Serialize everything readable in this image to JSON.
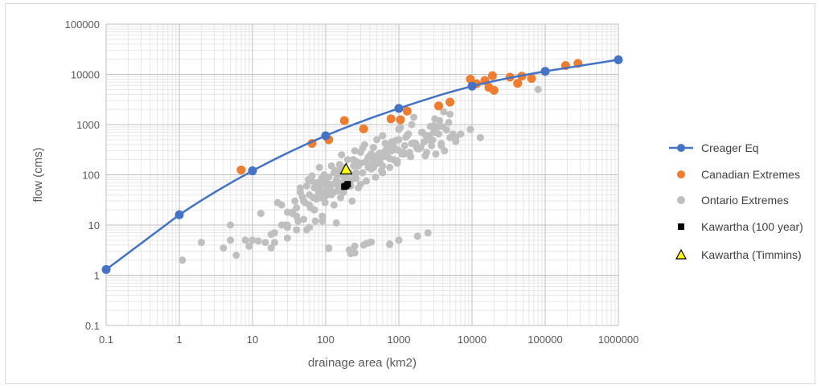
{
  "chart_data": {
    "type": "scatter",
    "title": "",
    "xlabel": "drainage area (km2)",
    "ylabel": "flow (cms)",
    "x_scale": "log",
    "y_scale": "log",
    "xlim": [
      0.1,
      1000000
    ],
    "ylim": [
      0.1,
      100000
    ],
    "grid": true,
    "legend_position": "right",
    "x_tick_labels": [
      "0.1",
      "1",
      "10",
      "100",
      "1000",
      "10000",
      "100000",
      "1000000"
    ],
    "y_tick_labels": [
      "0.1",
      "1",
      "10",
      "100",
      "1000",
      "10000",
      "100000"
    ],
    "series": [
      {
        "name": "Creager Eq",
        "kind": "line-markers",
        "color": "#4472c4",
        "marker": "circle",
        "x": [
          0.1,
          1,
          10,
          100,
          1000,
          10000,
          100000,
          1000000
        ],
        "y": [
          1.3,
          16,
          120,
          600,
          2100,
          5800,
          11500,
          19500
        ]
      },
      {
        "name": "Canadian Extremes",
        "kind": "markers",
        "color": "#ed7d31",
        "marker": "circle",
        "x": [
          7,
          65,
          110,
          180,
          330,
          780,
          1050,
          1300,
          3500,
          5000,
          9500,
          11500,
          15000,
          17000,
          19000,
          20000,
          33000,
          42000,
          48000,
          65000,
          190000,
          280000
        ],
        "y": [
          125,
          420,
          500,
          1200,
          820,
          1300,
          1250,
          1850,
          2350,
          2800,
          8000,
          6500,
          7500,
          5500,
          9400,
          4800,
          8800,
          6600,
          9200,
          8300,
          15000,
          16500
        ]
      },
      {
        "name": "Ontario Extremes",
        "kind": "markers",
        "color": "#bfbfbf",
        "marker": "circle",
        "x": [
          1.1,
          2,
          4,
          5,
          5,
          8,
          10,
          13,
          18,
          20,
          22,
          25,
          28,
          30,
          30,
          35,
          38,
          40,
          42,
          45,
          48,
          50,
          52,
          55,
          58,
          60,
          62,
          65,
          68,
          70,
          72,
          75,
          78,
          80,
          82,
          85,
          88,
          90,
          92,
          95,
          98,
          100,
          105,
          110,
          115,
          120,
          125,
          130,
          135,
          140,
          145,
          150,
          155,
          160,
          165,
          170,
          175,
          180,
          190,
          200,
          210,
          220,
          230,
          240,
          250,
          260,
          270,
          280,
          300,
          320,
          340,
          360,
          380,
          400,
          420,
          450,
          480,
          500,
          520,
          550,
          580,
          600,
          650,
          700,
          750,
          800,
          850,
          900,
          950,
          1000,
          1100,
          1200,
          1300,
          1400,
          1500,
          1700,
          1900,
          2100,
          2300,
          2500,
          2800,
          3000,
          3200,
          3500,
          3800,
          4200,
          4500,
          5000,
          5500,
          6000,
          7000,
          9500,
          13000,
          80000,
          30,
          40,
          55,
          70,
          90,
          120,
          150,
          200,
          250,
          300,
          400,
          500,
          600,
          800,
          1000,
          1500,
          2000,
          3000,
          4000,
          5000,
          60,
          75,
          100,
          130,
          170,
          220,
          280,
          350,
          450,
          550,
          700,
          900,
          1200,
          1600,
          2200,
          2600,
          3400,
          4800,
          6000,
          45,
          65,
          85,
          110,
          140,
          180,
          240,
          320,
          420,
          520,
          650,
          850,
          1050,
          1350,
          1800,
          2400,
          3100,
          4100,
          25,
          35,
          50,
          80,
          160,
          260,
          380,
          480,
          620,
          780,
          980,
          1250,
          1650,
          2050,
          2700,
          3600,
          70,
          100,
          130,
          200,
          300,
          450,
          600,
          750,
          950,
          1150,
          1450,
          1750,
          2300,
          2900,
          3800,
          15,
          18,
          12,
          9,
          6,
          110,
          210,
          250,
          330,
          400,
          750,
          1000,
          1800,
          2500,
          20,
          30,
          40,
          60,
          90,
          140
        ],
        "y": [
          2,
          4.5,
          3.5,
          10,
          5,
          5,
          5,
          17,
          3.5,
          7,
          28,
          10,
          10,
          18,
          9,
          17,
          30,
          22,
          12,
          45,
          36,
          13,
          28,
          60,
          80,
          40,
          22,
          95,
          35,
          55,
          12,
          33,
          70,
          40,
          140,
          60,
          85,
          35,
          45,
          100,
          28,
          70,
          55,
          90,
          50,
          150,
          65,
          25,
          120,
          80,
          48,
          100,
          160,
          35,
          250,
          70,
          45,
          140,
          90,
          200,
          110,
          60,
          30,
          150,
          300,
          85,
          180,
          55,
          280,
          110,
          400,
          75,
          220,
          160,
          130,
          350,
          90,
          500,
          250,
          180,
          120,
          600,
          300,
          230,
          140,
          450,
          200,
          320,
          170,
          800,
          260,
          380,
          600,
          280,
          1000,
          420,
          330,
          700,
          240,
          500,
          380,
          950,
          260,
          650,
          420,
          300,
          780,
          550,
          650,
          460,
          650,
          800,
          550,
          5000,
          10,
          15,
          8,
          20,
          15,
          40,
          60,
          85,
          95,
          170,
          240,
          210,
          150,
          300,
          500,
          420,
          350,
          700,
          900,
          1600,
          25,
          60,
          40,
          110,
          130,
          75,
          150,
          180,
          210,
          270,
          320,
          480,
          260,
          1400,
          450,
          600,
          900,
          1100,
          550,
          55,
          75,
          35,
          65,
          120,
          90,
          200,
          340,
          260,
          190,
          420,
          360,
          880,
          650,
          330,
          280,
          1300,
          1800,
          25,
          18,
          30,
          48,
          60,
          110,
          140,
          160,
          230,
          360,
          310,
          560,
          430,
          700,
          920,
          1200,
          20,
          38,
          45,
          80,
          65,
          140,
          110,
          210,
          190,
          280,
          230,
          350,
          620,
          490,
          380,
          4.5,
          6.5,
          4.8,
          3.8,
          2.5,
          3.5,
          3.2,
          2.8,
          4,
          4.5,
          4.2,
          5,
          6,
          7,
          4.5,
          5.5,
          8,
          9,
          12,
          11
        ],
        "extra_low": {
          "x": [
            110,
            220,
            250,
            360,
            420,
            750
          ],
          "y": [
            3.4,
            2.7,
            3.8,
            4.3,
            4.6,
            4.1
          ]
        }
      },
      {
        "name": "Kawartha (100 year)",
        "kind": "markers",
        "color": "#000000",
        "marker": "square",
        "x": [
          180,
          190,
          200
        ],
        "y": [
          58,
          60,
          65
        ]
      },
      {
        "name": "Kawartha (Timmins)",
        "kind": "markers",
        "color": "#ffff00",
        "marker": "triangle",
        "x": [
          190
        ],
        "y": [
          130
        ]
      }
    ]
  }
}
